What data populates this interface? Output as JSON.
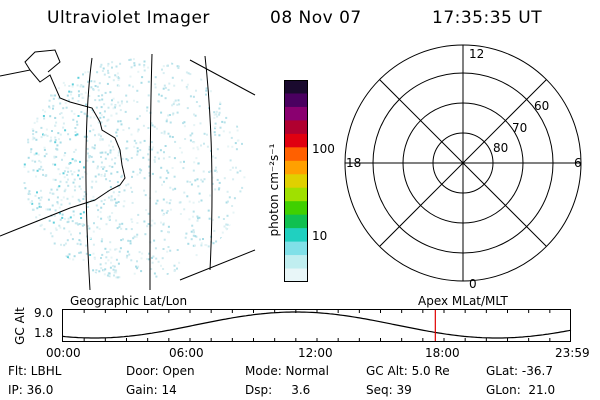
{
  "header": {
    "title": "Ultraviolet Imager",
    "date": "08 Nov 07",
    "time": "17:35:35 UT"
  },
  "colorbar": {
    "unit_label": "photon cm⁻²s⁻¹",
    "ticks": [
      "100",
      "10"
    ],
    "colors": [
      "#1a0a2e",
      "#4a0060",
      "#8a0070",
      "#b00030",
      "#e00010",
      "#ff6000",
      "#ffa000",
      "#e0d000",
      "#a0e000",
      "#40d000",
      "#10c050",
      "#20d0c0",
      "#80e0e8",
      "#c0eef0",
      "#e8f6f8"
    ]
  },
  "polar_plot": {
    "clock_labels": [
      "12",
      "18",
      "6",
      "0"
    ],
    "lat_labels": [
      "60",
      "70",
      "80"
    ]
  },
  "timeline": {
    "y_axis_label": "GC Alt",
    "y_ticks": [
      "9.0",
      "1.8"
    ],
    "left_caption": "Geographic Lat/Lon",
    "right_caption": "Apex MLat/MLT",
    "x_ticks": [
      "00:00",
      "06:00",
      "12:00",
      "18:00",
      "23:59"
    ],
    "marker_color": "#e00000",
    "current_time_hours": 17.59
  },
  "info": {
    "flt": "Flt: LBHL",
    "ip": "IP: 36.0",
    "door": "Door: Open",
    "gain": "Gain: 14",
    "mode": "Mode: Normal",
    "dsp": "Dsp:     3.6",
    "gc_alt": "GC Alt: 5.0 Re",
    "seq": "Seq: 39",
    "glat": "GLat: -36.7",
    "glon": "GLon:  21.0"
  }
}
